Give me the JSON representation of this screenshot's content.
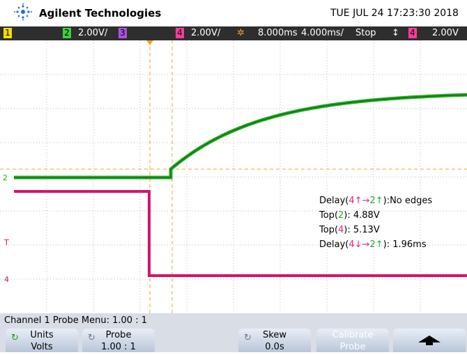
{
  "header": {
    "brand": "Agilent Technologies",
    "datetime": "TUE JUL 24 17:23:30 2018"
  },
  "status_bar": {
    "ch1": "1",
    "ch2": "2",
    "ch2_scale": "2.00V/",
    "ch3": "3",
    "ch4": "4",
    "ch4_scale": "2.00V/",
    "delay": "8.000ms",
    "timebase": "4.000ms/",
    "run_state": "Stop",
    "trigger_mode": "↕",
    "trigger_source": "4",
    "trigger_level": "2.00V"
  },
  "markers": {
    "ch2": "2",
    "trigger": "T",
    "ch4": "4"
  },
  "measurements": [
    [
      "Delay(",
      "4",
      "↑→",
      "2",
      "↑",
      "):No edges"
    ],
    [
      "Top(",
      "2",
      "): 4.88V"
    ],
    [
      "Top(",
      "4",
      "): 5.13V"
    ],
    [
      "Delay(",
      "4",
      "↓→",
      "2",
      "↑",
      "): 1.96ms"
    ]
  ],
  "menu": {
    "title": "Channel 1 Probe Menu: 1.00 : 1",
    "softkeys": [
      {
        "label": "Units",
        "value": "Volts"
      },
      {
        "label": "Probe",
        "value": "1.00 : 1"
      },
      {
        "label": "Skew",
        "value": "0.0s"
      },
      {
        "label": "Calibrate",
        "value": "Probe"
      }
    ]
  }
}
